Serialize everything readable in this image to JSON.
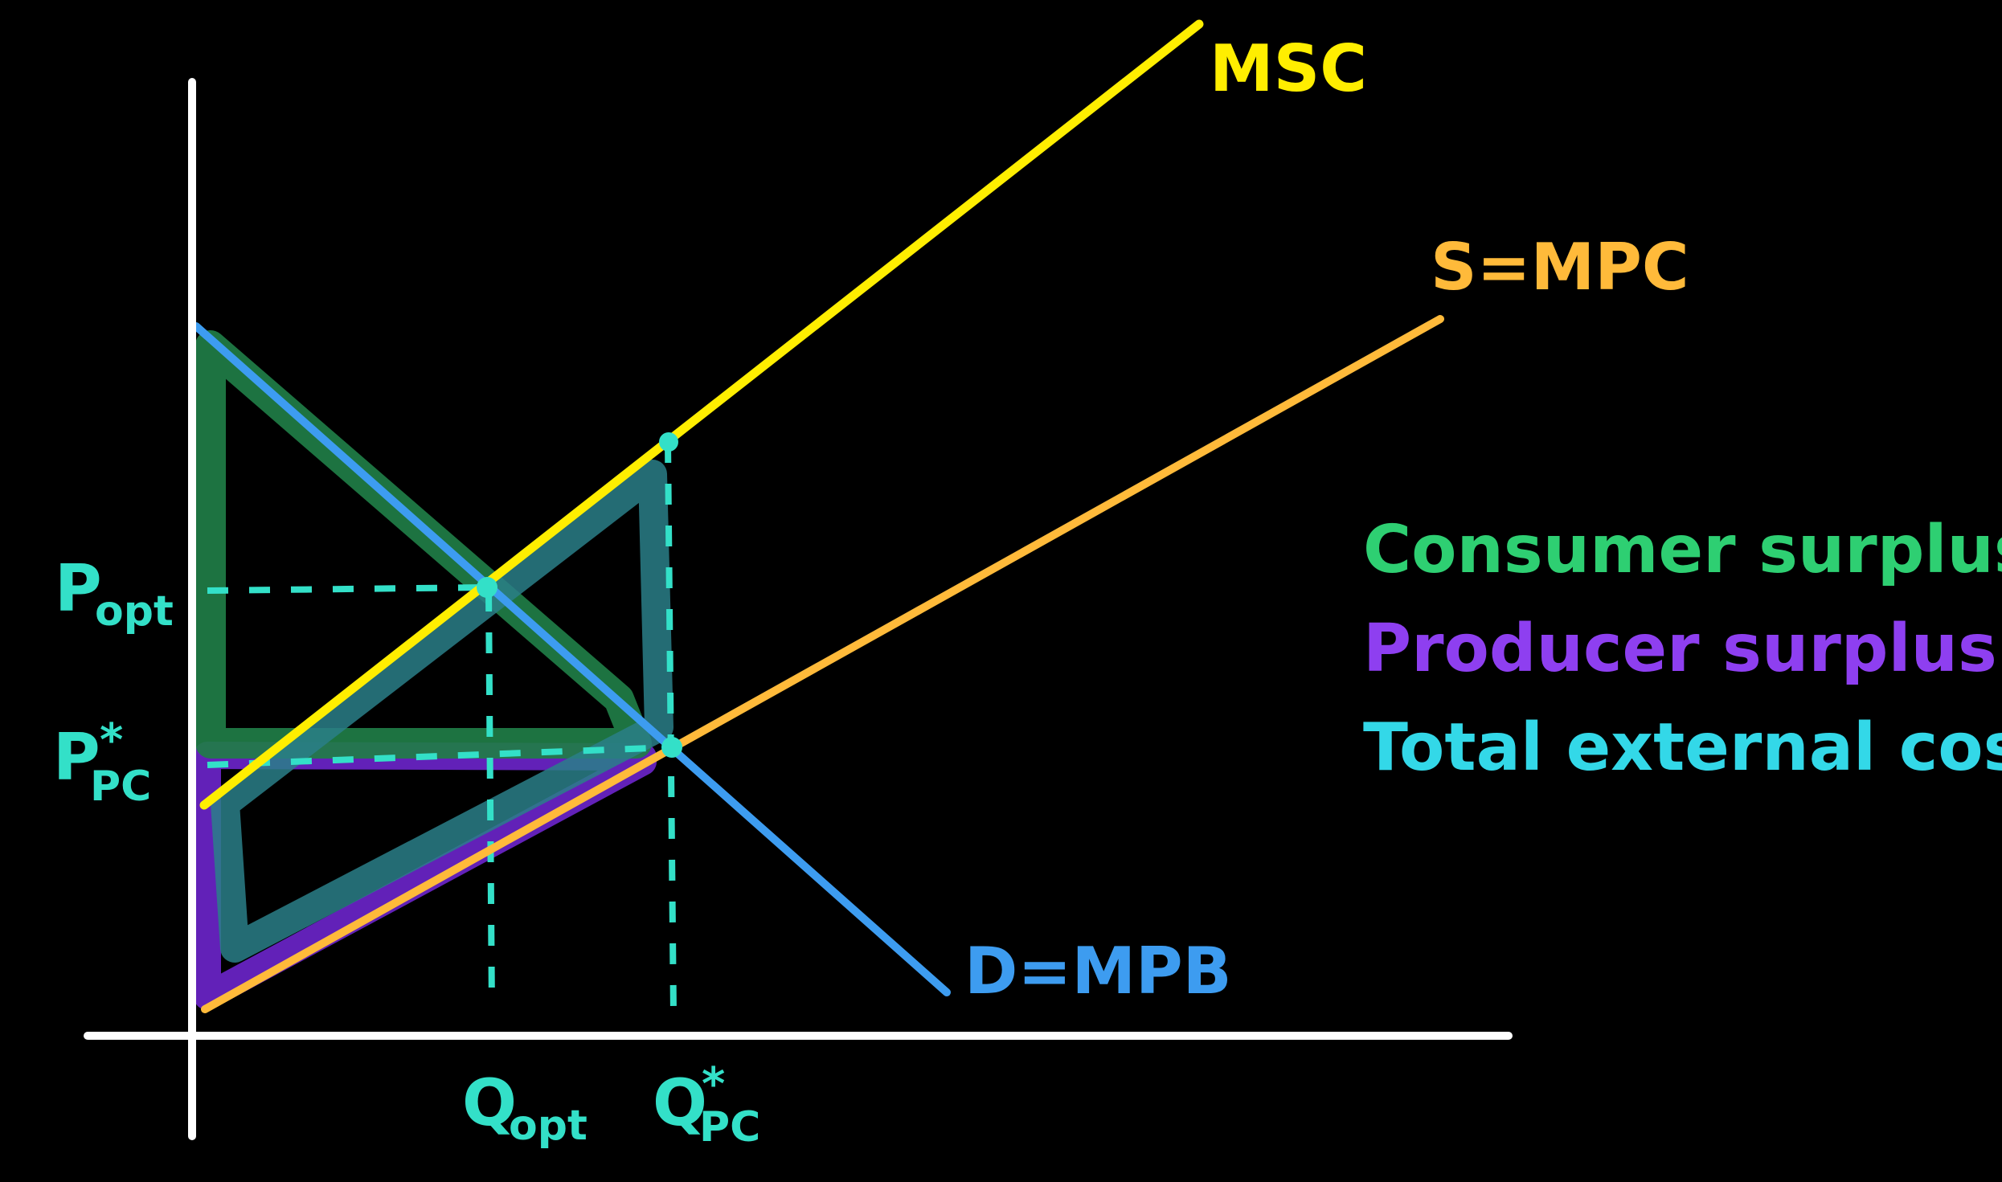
{
  "colors": {
    "background": "#000000",
    "axis": "#ffffff",
    "msc": "#ffee00",
    "supply": "#ffba3a",
    "demand": "#3d9cf0",
    "guide": "#33e0c8",
    "consumer_surplus": "#1f9a55",
    "producer_surplus": "#7a2ad8",
    "external_cost": "#2a7f88"
  },
  "curves": {
    "msc": {
      "label": "MSC"
    },
    "supply": {
      "label": "S=MPC"
    },
    "demand": {
      "label": "D=MPB"
    }
  },
  "axes": {
    "p_opt": {
      "main": "P",
      "sub": "opt"
    },
    "p_pc": {
      "main": "P",
      "sub": "PC",
      "sup": "*"
    },
    "q_opt": {
      "main": "Q",
      "sub": "opt"
    },
    "q_pc": {
      "main": "Q",
      "sub": "PC",
      "sup": "*"
    }
  },
  "legend": {
    "consumer_surplus": "Consumer surplus",
    "producer_surplus": "Producer surplus",
    "external_cost": "Total external cost"
  }
}
